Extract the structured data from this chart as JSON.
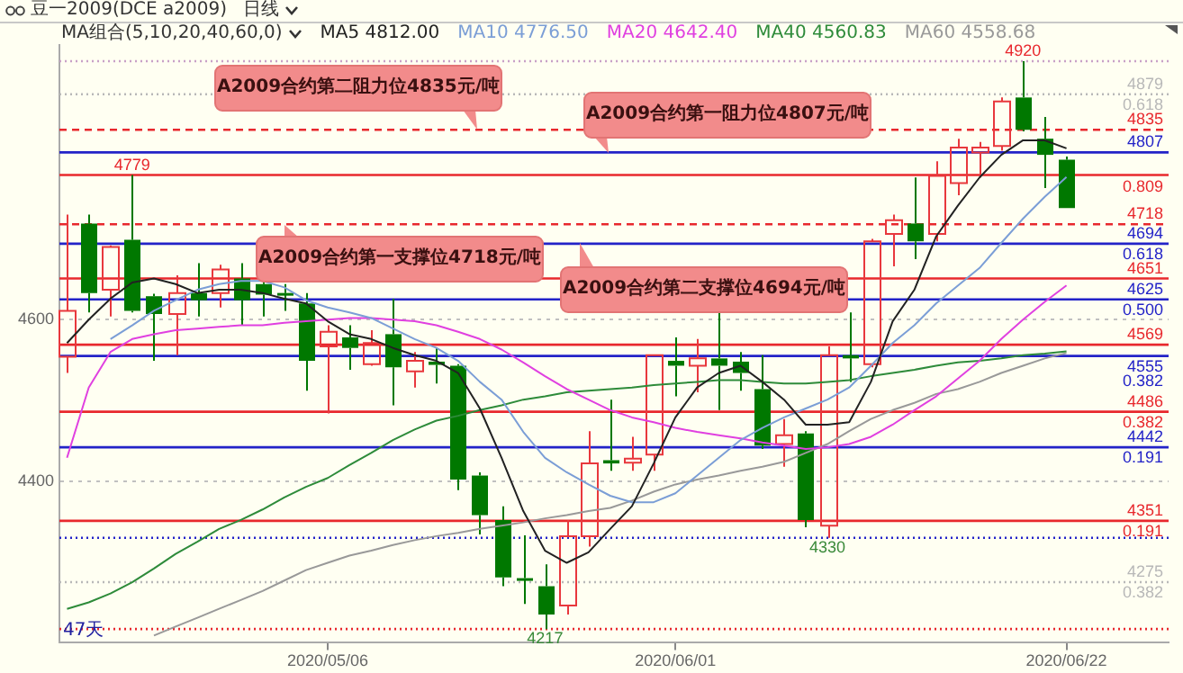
{
  "chart_data": {
    "type": "candlestick",
    "title": "豆一2009(DCE a2009)",
    "subtitle": "日线",
    "legend_title": "MA组合(5,10,20,40,60,0)",
    "legend": "top right",
    "grid": "y",
    "categories": [
      null,
      null,
      null,
      null,
      null,
      null,
      null,
      null,
      null,
      null,
      null,
      null,
      "2020/05/06",
      null,
      null,
      null,
      null,
      null,
      null,
      null,
      null,
      null,
      null,
      null,
      null,
      null,
      null,
      null,
      "2020/06/01",
      null,
      null,
      null,
      null,
      null,
      null,
      null,
      null,
      null,
      null,
      null,
      null,
      null,
      null,
      null,
      null,
      null,
      "2020/06/22"
    ],
    "ohlc": [
      [
        4554,
        4730,
        4534,
        4611
      ],
      [
        4719,
        4730,
        4609,
        4633
      ],
      [
        4637,
        4692,
        4604,
        4690
      ],
      [
        4699,
        4779,
        4609,
        4611
      ],
      [
        4629,
        4632,
        4549,
        4607
      ],
      [
        4607,
        4655,
        4556,
        4633
      ],
      [
        4633,
        4670,
        4604,
        4624
      ],
      [
        4633,
        4668,
        4615,
        4662
      ],
      [
        4651,
        4670,
        4593,
        4624
      ],
      [
        4644,
        4648,
        4604,
        4631
      ],
      [
        4633,
        4644,
        4611,
        4631
      ],
      [
        4620,
        4633,
        4512,
        4549
      ],
      [
        4567,
        4593,
        4484,
        4585
      ],
      [
        4578,
        4593,
        4538,
        4565
      ],
      [
        4545,
        4587,
        4543,
        4571
      ],
      [
        4582,
        4626,
        4494,
        4541
      ],
      [
        4536,
        4560,
        4516,
        4549
      ],
      [
        4548,
        4565,
        4521,
        4544
      ],
      [
        4543,
        4545,
        4389,
        4402
      ],
      [
        4407,
        4411,
        4334,
        4358
      ],
      [
        4352,
        4369,
        4270,
        4281
      ],
      [
        4280,
        4333,
        4248,
        4278
      ],
      [
        4270,
        4297,
        4217,
        4235
      ],
      [
        4246,
        4352,
        4235,
        4332
      ],
      [
        4332,
        4462,
        4319,
        4422
      ],
      [
        4426,
        4501,
        4413,
        4422
      ],
      [
        4423,
        4455,
        4413,
        4428
      ],
      [
        4433,
        4556,
        4413,
        4556
      ],
      [
        4549,
        4578,
        4505,
        4543
      ],
      [
        4543,
        4576,
        4510,
        4552
      ],
      [
        4552,
        4609,
        4488,
        4543
      ],
      [
        4548,
        4560,
        4512,
        4534
      ],
      [
        4514,
        4556,
        4440,
        4444
      ],
      [
        4446,
        4477,
        4418,
        4457
      ],
      [
        4459,
        4462,
        4343,
        4352
      ],
      [
        4345,
        4567,
        4330,
        4556
      ],
      [
        4556,
        4609,
        4523,
        4552
      ],
      [
        4545,
        4700,
        4541,
        4697
      ],
      [
        4706,
        4730,
        4666,
        4723
      ],
      [
        4719,
        4776,
        4675,
        4697
      ],
      [
        4706,
        4796,
        4697,
        4778
      ],
      [
        4769,
        4824,
        4754,
        4813
      ],
      [
        4807,
        4820,
        4776,
        4813
      ],
      [
        4815,
        4875,
        4809,
        4870
      ],
      [
        4875,
        4920,
        4833,
        4835
      ],
      [
        4824,
        4851,
        4763,
        4804
      ],
      [
        4798,
        4802,
        4738,
        4738
      ]
    ],
    "colors": [
      "#e8383d",
      "#007800",
      "#e8383d",
      "#007800",
      "#007800",
      "#e8383d",
      "#007800",
      "#e8383d",
      "#007800",
      "#007800",
      "#007800",
      "#007800",
      "#e8383d",
      "#007800",
      "#e8383d",
      "#007800",
      "#e8383d",
      "#007800",
      "#007800",
      "#007800",
      "#007800",
      "#007800",
      "#007800",
      "#e8383d",
      "#e8383d",
      "#007800",
      "#e8383d",
      "#e8383d",
      "#007800",
      "#e8383d",
      "#007800",
      "#007800",
      "#007800",
      "#e8383d",
      "#007800",
      "#e8383d",
      "#007800",
      "#e8383d",
      "#e8383d",
      "#007800",
      "#e8383d",
      "#e8383d",
      "#e8383d",
      "#e8383d",
      "#007800",
      "#007800",
      "#007800"
    ],
    "series": [
      {
        "type": "line",
        "name": "MA5 4812.00",
        "color": "#222222",
        "values": [
          4571,
          4600,
          4626,
          4646,
          4651,
          4644,
          4633,
          4637,
          4637,
          4633,
          4626,
          4620,
          4598,
          4582,
          4576,
          4565,
          4556,
          4549,
          4534,
          4490,
          4429,
          4363,
          4314,
          4299,
          4312,
          4341,
          4369,
          4422,
          4479,
          4516,
          4534,
          4543,
          4523,
          4501,
          4470,
          4470,
          4473,
          4523,
          4598,
          4637,
          4703,
          4741,
          4776,
          4804,
          4822,
          4822,
          4812
        ]
      },
      {
        "type": "line",
        "name": "MA10 4776.50",
        "color": "#7b9ed6",
        "values": [
          null,
          null,
          4576,
          4593,
          4611,
          4624,
          4637,
          4644,
          4648,
          4648,
          4640,
          4624,
          4615,
          4609,
          4602,
          4589,
          4576,
          4565,
          4549,
          4523,
          4501,
          4461,
          4429,
          4411,
          4396,
          4382,
          4374,
          4374,
          4385,
          4407,
          4429,
          4451,
          4466,
          4479,
          4490,
          4501,
          4516,
          4543,
          4571,
          4593,
          4620,
          4642,
          4664,
          4695,
          4725,
          4752,
          4776.5
        ]
      },
      {
        "type": "line",
        "name": "MA20 4642.40",
        "color": "#e040e0",
        "values": [
          4429,
          4516,
          4560,
          4576,
          4582,
          4587,
          4589,
          4591,
          4593,
          4593,
          4596,
          4598,
          4600,
          4602,
          4602,
          4600,
          4598,
          4593,
          4585,
          4576,
          4563,
          4547,
          4530,
          4514,
          4501,
          4488,
          4479,
          4473,
          4466,
          4461,
          4457,
          4453,
          4448,
          4444,
          4440,
          4442,
          4446,
          4455,
          4470,
          4488,
          4505,
          4527,
          4549,
          4576,
          4600,
          4622,
          4642.4
        ]
      },
      {
        "type": "line",
        "name": "MA40 4560.83",
        "color": "#2e8b3a",
        "values": [
          4242,
          4250,
          4261,
          4275,
          4292,
          4310,
          4325,
          4341,
          4352,
          4365,
          4380,
          4393,
          4404,
          4420,
          4435,
          4451,
          4464,
          4475,
          4481,
          4488,
          4494,
          4501,
          4505,
          4510,
          4512,
          4514,
          4516,
          4519,
          4521,
          4523,
          4525,
          4525,
          4523,
          4521,
          4521,
          4523,
          4525,
          4530,
          4534,
          4538,
          4543,
          4547,
          4549,
          4552,
          4556,
          4558,
          4560.83
        ]
      },
      {
        "type": "line",
        "name": "MA60 4558.68",
        "color": "#999999",
        "values": [
          null,
          null,
          null,
          null,
          4209,
          4220,
          4231,
          4242,
          4253,
          4264,
          4277,
          4290,
          4299,
          4308,
          4314,
          4321,
          4327,
          4332,
          4336,
          4341,
          4345,
          4349,
          4354,
          4358,
          4363,
          4367,
          4376,
          4387,
          4396,
          4402,
          4407,
          4413,
          4418,
          4424,
          4435,
          4446,
          4462,
          4477,
          4488,
          4497,
          4508,
          4514,
          4523,
          4534,
          4543,
          4552,
          4558.68
        ]
      }
    ],
    "ylim": [
      4200,
      4940
    ],
    "yticks": [
      4400,
      4600
    ],
    "ref_lines": [
      {
        "axis": "y",
        "value": 4920,
        "color": "#c8a0c8",
        "line_style": "dotted"
      },
      {
        "axis": "y",
        "value": 4879,
        "label": "4879\n0.618",
        "color": "#b8b8b8",
        "line_style": "dotted"
      },
      {
        "axis": "y",
        "value": 4835,
        "label": "4835",
        "color": "#e8282d",
        "line_style": "dashed"
      },
      {
        "axis": "y",
        "value": 4807,
        "label": "4807",
        "color": "#2323c8",
        "line_style": "solid"
      },
      {
        "axis": "y",
        "value": 4779,
        "color": "#e8282d",
        "line_style": "solid"
      },
      {
        "axis": "y",
        "value": 4718,
        "label": "4718",
        "color": "#e8282d",
        "line_style": "dashed"
      },
      {
        "axis": "y",
        "value": 4694,
        "label": "4694\n0.618",
        "color": "#2323c8",
        "line_style": "solid"
      },
      {
        "axis": "y",
        "value": 4651,
        "label": "4651",
        "color": "#e8282d",
        "line_style": "solid"
      },
      {
        "axis": "y",
        "value": 4625,
        "label": "4625\n0.500",
        "color": "#2323c8",
        "line_style": "solid"
      },
      {
        "axis": "y",
        "value": 4569,
        "label": "4569",
        "color": "#e8282d",
        "line_style": "solid"
      },
      {
        "axis": "y",
        "value": 4555,
        "label": "4555\n0.382",
        "color": "#2323c8",
        "line_style": "solid"
      },
      {
        "axis": "y",
        "value": 4486,
        "label": "4486\n0.382",
        "color": "#e8282d",
        "line_style": "solid"
      },
      {
        "axis": "y",
        "value": 4442,
        "label": "4442\n0.191",
        "color": "#2323c8",
        "line_style": "solid"
      },
      {
        "axis": "y",
        "value": 4351,
        "label": "4351\n0.191",
        "color": "#e8282d",
        "line_style": "solid"
      },
      {
        "axis": "y",
        "value": 4330,
        "color": "#2323c8",
        "line_style": "dotted"
      },
      {
        "axis": "y",
        "value": 4275,
        "label": "4275\n0.382",
        "color": "#b8b8b8",
        "line_style": "dotted"
      },
      {
        "axis": "y",
        "value": 4217,
        "color": "#e8282d",
        "line_style": "dotted"
      }
    ],
    "annotations": [
      {
        "text": "A2009合约第二阻力位4835元/吨",
        "y": 4835
      },
      {
        "text": "A2009合约第一阻力位4807元/吨",
        "y": 4807
      },
      {
        "text": "A2009合约第一支撑位4718元/吨",
        "y": 4718
      },
      {
        "text": "A2009合约第二支撑位4694元/吨",
        "y": 4694
      },
      {
        "text": "4920",
        "y": 4920
      },
      {
        "text": "4779",
        "y": 4779
      },
      {
        "text": "4217",
        "y": 4217
      },
      {
        "text": "4330",
        "y": 4330
      },
      {
        "text": "0.809",
        "y": 4779
      },
      "47天"
    ]
  }
}
